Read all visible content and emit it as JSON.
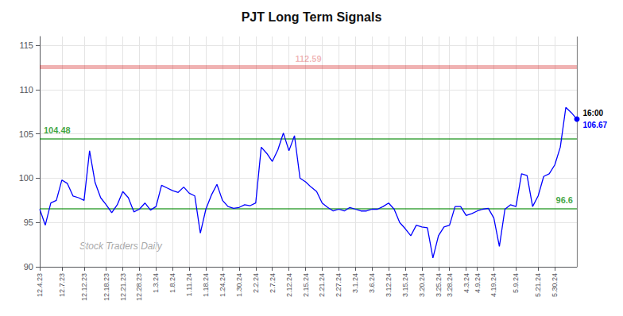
{
  "chart_data": {
    "type": "line",
    "title": "PJT Long Term Signals",
    "color": "blue",
    "grid": true,
    "ylim": [
      90,
      116
    ],
    "yticks": [
      90,
      95,
      100,
      105,
      110,
      115
    ],
    "categories": [
      "12.4.23",
      null,
      null,
      null,
      "12.7.23",
      null,
      null,
      null,
      "12.12.23",
      null,
      null,
      null,
      "12.18.23",
      null,
      null,
      "12.21.23",
      null,
      null,
      "12.28.23",
      null,
      null,
      "1.3.24",
      null,
      null,
      "1.8.24",
      null,
      null,
      "1.11.24",
      null,
      null,
      "1.18.24",
      null,
      null,
      "1.24.24",
      null,
      null,
      "1.30.24",
      null,
      null,
      "2.2.24",
      null,
      null,
      "2.7.24",
      null,
      null,
      "2.12.24",
      null,
      null,
      "2.15.24",
      null,
      null,
      "2.21.24",
      null,
      null,
      "2.27.24",
      null,
      null,
      "3.1.24",
      null,
      null,
      "3.6.24",
      null,
      null,
      "3.12.24",
      null,
      null,
      "3.15.24",
      null,
      null,
      "3.20.24",
      null,
      null,
      "3.25.24",
      null,
      "3.28.24",
      null,
      null,
      "4.3.24",
      null,
      "4.9.24",
      null,
      null,
      "4.19.24",
      null,
      null,
      null,
      "5.9.24",
      null,
      null,
      null,
      "5.21.24",
      null,
      null,
      "5.30.24",
      null,
      null,
      null,
      null
    ],
    "values": [
      96.5,
      94.7,
      97.2,
      97.5,
      99.8,
      99.4,
      98.0,
      97.8,
      97.5,
      103.1,
      99.5,
      97.8,
      97.0,
      96.1,
      97.0,
      98.5,
      97.8,
      96.2,
      96.5,
      97.2,
      96.4,
      96.8,
      99.2,
      98.9,
      98.6,
      98.4,
      99.0,
      98.3,
      98.0,
      93.8,
      96.5,
      98.1,
      99.3,
      97.5,
      96.8,
      96.6,
      96.7,
      97.0,
      96.9,
      97.2,
      103.5,
      102.8,
      101.9,
      103.2,
      105.1,
      103.1,
      104.8,
      100.0,
      99.6,
      99.0,
      98.5,
      97.2,
      96.7,
      96.3,
      96.5,
      96.3,
      96.7,
      96.5,
      96.3,
      96.3,
      96.5,
      96.5,
      96.8,
      97.2,
      96.5,
      95.0,
      94.3,
      93.5,
      94.7,
      94.5,
      94.4,
      91.0,
      93.5,
      94.5,
      94.7,
      96.8,
      96.8,
      95.8,
      96.0,
      96.3,
      96.5,
      96.6,
      95.5,
      92.3,
      96.5,
      97.0,
      96.8,
      100.5,
      100.3,
      96.8,
      98.0,
      100.2,
      100.5,
      101.5,
      103.5,
      108.0,
      107.4,
      106.67
    ],
    "annotations": [
      {
        "type": "hline",
        "y": 112.59,
        "text": "112.59",
        "color": "#cc0000"
      },
      {
        "type": "hline",
        "y": 104.48,
        "text": "104.48",
        "color": "#008800"
      },
      {
        "type": "hline",
        "y": 96.6,
        "text": "96.6",
        "color": "#008800"
      },
      {
        "type": "last",
        "y": 106.67,
        "text": "106.67",
        "time": "16:00",
        "color": "blue"
      },
      {
        "type": "watermark",
        "text": "Stock Traders Daily"
      }
    ]
  }
}
